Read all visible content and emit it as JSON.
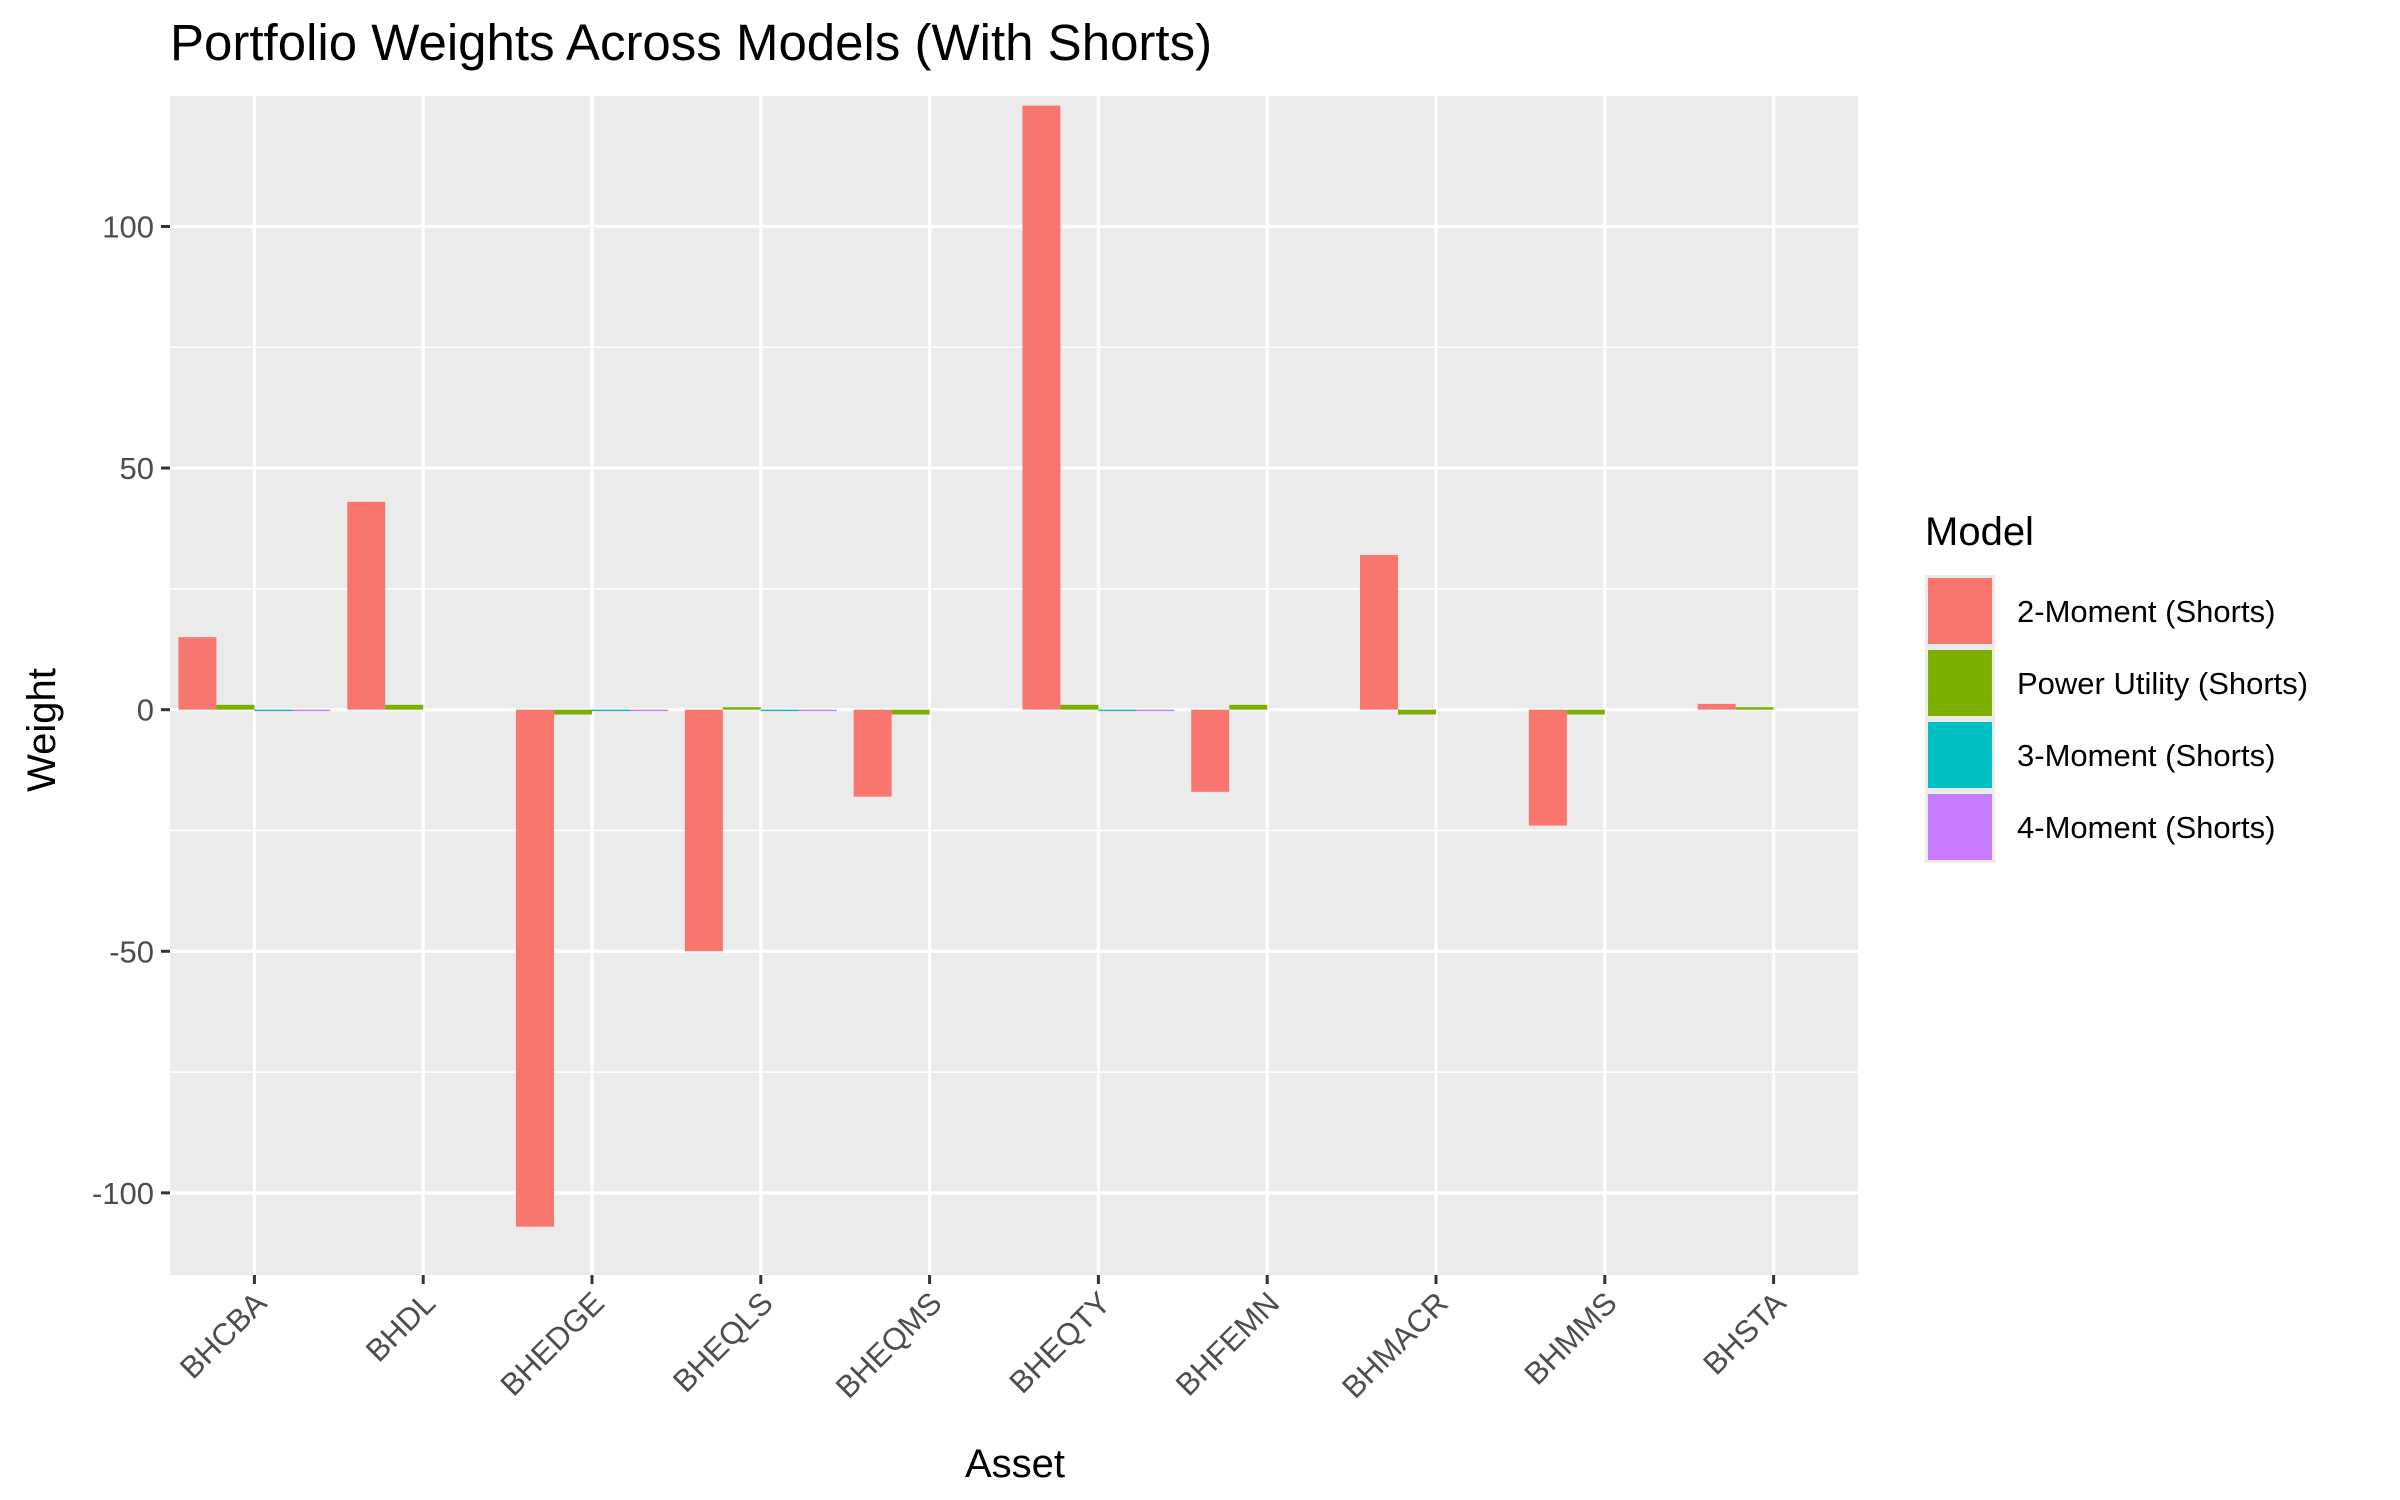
{
  "chart_data": {
    "type": "bar",
    "title": "Portfolio Weights Across Models (With Shorts)",
    "xlabel": "Asset",
    "ylabel": "Weight",
    "ylim": [
      -117,
      127
    ],
    "yticks": [
      -100,
      -50,
      0,
      50,
      100
    ],
    "grid": true,
    "legend_title": "Model",
    "legend_position": "right",
    "categories": [
      "BHCBA",
      "BHDL",
      "BHEDGE",
      "BHEQLS",
      "BHEQMS",
      "BHEQTY",
      "BHFEMN",
      "BHMACR",
      "BHMMS",
      "BHSTA"
    ],
    "series": [
      {
        "name": "2-Moment (Shorts)",
        "color": "#F8766D",
        "values": [
          15,
          43,
          -107,
          -50,
          -18,
          125,
          -17,
          32,
          -24,
          1.2
        ]
      },
      {
        "name": "Power Utility (Shorts)",
        "color": "#7CAE00",
        "values": [
          1,
          1,
          -1,
          0.5,
          -1,
          1,
          1,
          -1,
          -1,
          0.5
        ]
      },
      {
        "name": "3-Moment (Shorts)",
        "color": "#00BFC4",
        "values": [
          -0.3,
          0,
          -0.3,
          -0.3,
          0,
          -0.3,
          0,
          0,
          0,
          0
        ]
      },
      {
        "name": "4-Moment (Shorts)",
        "color": "#C77CFF",
        "values": [
          -0.3,
          0,
          -0.3,
          -0.3,
          0,
          -0.3,
          0,
          0,
          0,
          0
        ]
      }
    ]
  }
}
